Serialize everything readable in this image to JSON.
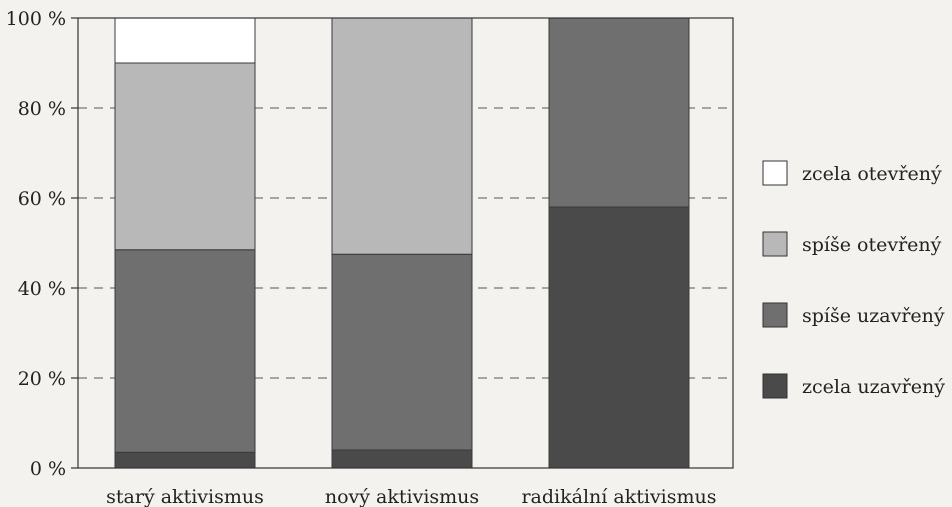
{
  "chart_data": {
    "type": "bar",
    "stacked": true,
    "normalized": true,
    "categories": [
      "starý aktivismus",
      "nový aktivismus",
      "radikální aktivismus"
    ],
    "series": [
      {
        "name": "zcela uzavřený",
        "color": "#4a4a4a",
        "values": [
          3.5,
          4,
          58
        ]
      },
      {
        "name": "spíše uzavřený",
        "color": "#6f6f6f",
        "values": [
          45,
          43.5,
          42
        ]
      },
      {
        "name": "spíše otevřený",
        "color": "#b8b8b8",
        "values": [
          41.5,
          52.5,
          0
        ]
      },
      {
        "name": "zcela otevřený",
        "color": "#ffffff",
        "values": [
          10,
          0,
          0
        ]
      }
    ],
    "yticks": [
      "0 %",
      "20 %",
      "40 %",
      "60 %",
      "80 %",
      "100 %"
    ],
    "ylim": [
      0,
      100
    ],
    "grid": "dashed horizontal",
    "legend_position": "right"
  }
}
